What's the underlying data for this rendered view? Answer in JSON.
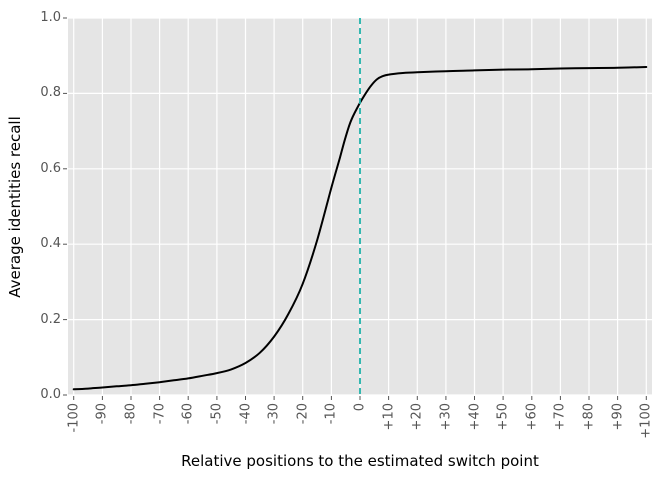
{
  "chart_data": {
    "type": "line",
    "title": "",
    "xlabel": "Relative positions to the estimated switch point",
    "ylabel": "Average identities recall",
    "xlim": [
      -102,
      102
    ],
    "ylim": [
      0,
      1
    ],
    "grid": true,
    "legend": "none",
    "panel_background": "#e5e5e5",
    "grid_color": "#ffffff",
    "tick_color": "#555555",
    "x_ticks": [
      {
        "value": -100,
        "label": "-100"
      },
      {
        "value": -90,
        "label": "-90"
      },
      {
        "value": -80,
        "label": "-80"
      },
      {
        "value": -70,
        "label": "-70"
      },
      {
        "value": -60,
        "label": "-60"
      },
      {
        "value": -50,
        "label": "-50"
      },
      {
        "value": -40,
        "label": "-40"
      },
      {
        "value": -30,
        "label": "-30"
      },
      {
        "value": -20,
        "label": "-20"
      },
      {
        "value": -10,
        "label": "-10"
      },
      {
        "value": 0,
        "label": "0"
      },
      {
        "value": 10,
        "label": "+10"
      },
      {
        "value": 20,
        "label": "+20"
      },
      {
        "value": 30,
        "label": "+30"
      },
      {
        "value": 40,
        "label": "+40"
      },
      {
        "value": 50,
        "label": "+50"
      },
      {
        "value": 60,
        "label": "+60"
      },
      {
        "value": 70,
        "label": "+70"
      },
      {
        "value": 80,
        "label": "+80"
      },
      {
        "value": 90,
        "label": "+90"
      },
      {
        "value": 100,
        "label": "+100"
      }
    ],
    "y_ticks": [
      {
        "value": 0.0,
        "label": "0.0"
      },
      {
        "value": 0.2,
        "label": "0.2"
      },
      {
        "value": 0.4,
        "label": "0.4"
      },
      {
        "value": 0.6,
        "label": "0.6"
      },
      {
        "value": 0.8,
        "label": "0.8"
      },
      {
        "value": 1.0,
        "label": "1.0"
      }
    ],
    "series": [
      {
        "name": "average identities recall",
        "color": "#000000",
        "style": "solid",
        "width": 2,
        "points": [
          [
            -100,
            0.015
          ],
          [
            -95,
            0.017
          ],
          [
            -90,
            0.02
          ],
          [
            -85,
            0.023
          ],
          [
            -80,
            0.026
          ],
          [
            -75,
            0.03
          ],
          [
            -70,
            0.034
          ],
          [
            -65,
            0.039
          ],
          [
            -60,
            0.044
          ],
          [
            -55,
            0.051
          ],
          [
            -50,
            0.058
          ],
          [
            -45,
            0.068
          ],
          [
            -40,
            0.085
          ],
          [
            -35,
            0.112
          ],
          [
            -30,
            0.155
          ],
          [
            -25,
            0.215
          ],
          [
            -20,
            0.295
          ],
          [
            -15,
            0.41
          ],
          [
            -10,
            0.55
          ],
          [
            -7,
            0.63
          ],
          [
            -5,
            0.685
          ],
          [
            -3,
            0.73
          ],
          [
            0,
            0.775
          ],
          [
            2,
            0.8
          ],
          [
            4,
            0.822
          ],
          [
            6,
            0.838
          ],
          [
            8,
            0.846
          ],
          [
            10,
            0.85
          ],
          [
            15,
            0.854
          ],
          [
            20,
            0.856
          ],
          [
            30,
            0.859
          ],
          [
            40,
            0.861
          ],
          [
            50,
            0.863
          ],
          [
            60,
            0.864
          ],
          [
            70,
            0.866
          ],
          [
            80,
            0.867
          ],
          [
            90,
            0.868
          ],
          [
            100,
            0.87
          ]
        ]
      }
    ],
    "reference_line": {
      "axis": "x",
      "value": 0,
      "color": "#20b2aa",
      "style": "dashed",
      "width": 1.8
    }
  }
}
